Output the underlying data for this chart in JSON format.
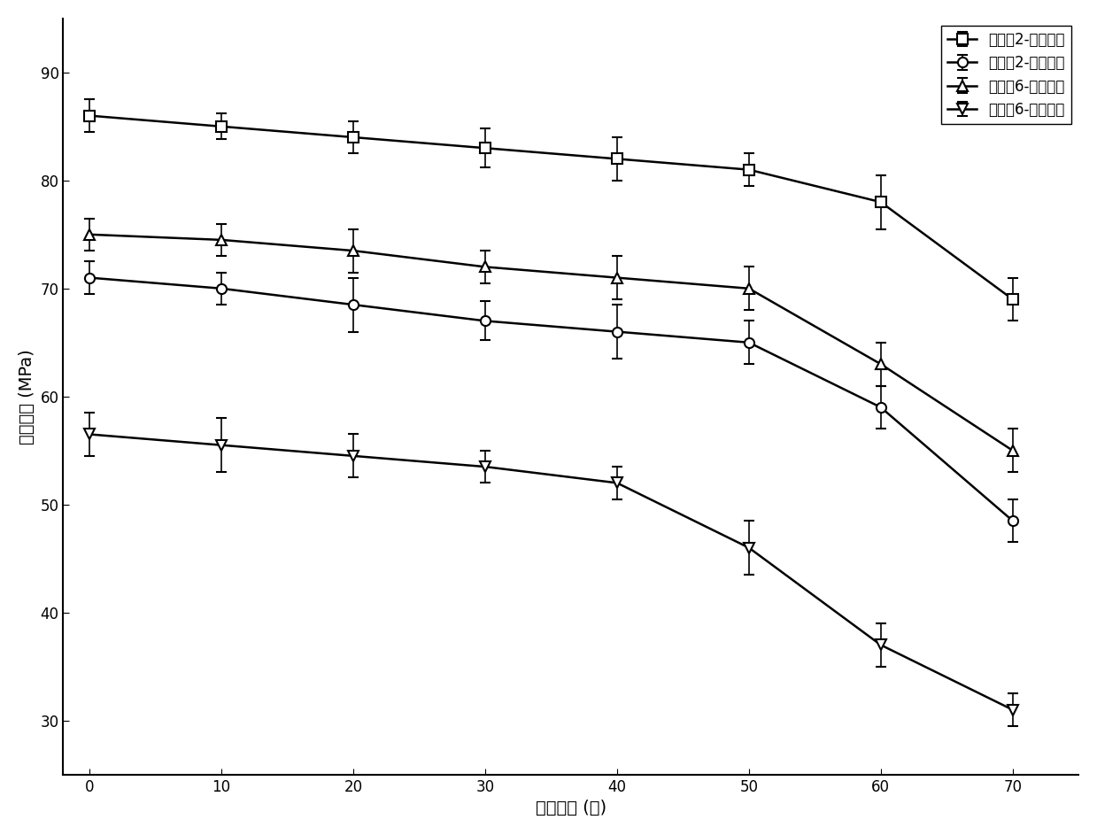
{
  "x": [
    0,
    10,
    20,
    30,
    40,
    50,
    60,
    70
  ],
  "series": [
    {
      "label": "实施例2-完整试件",
      "y": [
        86,
        85,
        84,
        83,
        82,
        81,
        78,
        69
      ],
      "yerr": [
        1.5,
        1.2,
        1.5,
        1.8,
        2.0,
        1.5,
        2.5,
        2.0
      ],
      "marker": "s",
      "color": "#000000"
    },
    {
      "label": "实施例2-修复试件",
      "y": [
        71,
        70,
        68.5,
        67,
        66,
        65,
        59,
        48.5
      ],
      "yerr": [
        1.5,
        1.5,
        2.5,
        1.8,
        2.5,
        2.0,
        2.0,
        2.0
      ],
      "marker": "o",
      "color": "#000000"
    },
    {
      "label": "实施例6-完整试件",
      "y": [
        75,
        74.5,
        73.5,
        72,
        71,
        70,
        63,
        55
      ],
      "yerr": [
        1.5,
        1.5,
        2.0,
        1.5,
        2.0,
        2.0,
        2.0,
        2.0
      ],
      "marker": "^",
      "color": "#000000"
    },
    {
      "label": "实施例6-修复试件",
      "y": [
        56.5,
        55.5,
        54.5,
        53.5,
        52,
        46,
        37,
        31
      ],
      "yerr": [
        2.0,
        2.5,
        2.0,
        1.5,
        1.5,
        2.5,
        2.0,
        1.5
      ],
      "marker": "v",
      "color": "#000000"
    }
  ],
  "xlabel": "循环次数 (次)",
  "ylabel": "抗压强度 (MPa)",
  "xlim": [
    -2,
    75
  ],
  "ylim": [
    25,
    95
  ],
  "xticks": [
    0,
    10,
    20,
    30,
    40,
    50,
    60,
    70
  ],
  "yticks": [
    30,
    40,
    50,
    60,
    70,
    80,
    90
  ],
  "markersize": 8,
  "linewidth": 1.8,
  "capsize": 4,
  "elinewidth": 1.2,
  "background_color": "#ffffff",
  "legend_loc": "upper right",
  "legend_frameon": true
}
